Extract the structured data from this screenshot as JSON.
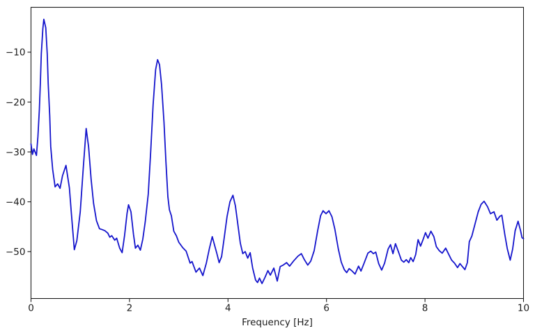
{
  "chart_data": {
    "type": "line",
    "title": "",
    "xlabel": "Frequency [Hz]",
    "ylabel": "",
    "xlim": [
      0,
      10
    ],
    "ylim": [
      -59.4,
      -1.0
    ],
    "grid": false,
    "legend": null,
    "line_color": "#1414cc",
    "axis_color": "#1a1a1a",
    "background_color": "#ffffff",
    "x_ticks": [
      0,
      2,
      4,
      6,
      8,
      10
    ],
    "x_tick_labels": [
      "0",
      "2",
      "4",
      "6",
      "8",
      "10"
    ],
    "y_ticks": [
      -10,
      -20,
      -30,
      -40,
      -50
    ],
    "y_tick_labels": [
      "−10",
      "−20",
      "−30",
      "−40",
      "−50"
    ],
    "series": [
      {
        "name": "spectrum",
        "x": [
          0.0,
          0.03,
          0.06,
          0.11,
          0.14,
          0.17,
          0.19,
          0.21,
          0.24,
          0.26,
          0.3,
          0.33,
          0.35,
          0.38,
          0.4,
          0.44,
          0.49,
          0.54,
          0.59,
          0.64,
          0.71,
          0.78,
          0.82,
          0.88,
          0.93,
          1.0,
          1.06,
          1.12,
          1.17,
          1.22,
          1.27,
          1.33,
          1.39,
          1.45,
          1.5,
          1.56,
          1.6,
          1.64,
          1.7,
          1.74,
          1.8,
          1.85,
          1.9,
          1.95,
          1.98,
          2.03,
          2.08,
          2.12,
          2.17,
          2.22,
          2.27,
          2.32,
          2.38,
          2.43,
          2.48,
          2.53,
          2.57,
          2.61,
          2.65,
          2.7,
          2.74,
          2.78,
          2.81,
          2.85,
          2.9,
          2.95,
          3.0,
          3.08,
          3.15,
          3.23,
          3.27,
          3.35,
          3.42,
          3.49,
          3.56,
          3.62,
          3.68,
          3.73,
          3.77,
          3.82,
          3.87,
          3.92,
          3.98,
          4.04,
          4.1,
          4.15,
          4.2,
          4.25,
          4.3,
          4.35,
          4.4,
          4.45,
          4.5,
          4.56,
          4.6,
          4.64,
          4.69,
          4.75,
          4.81,
          4.86,
          4.93,
          5.0,
          5.06,
          5.12,
          5.19,
          5.25,
          5.33,
          5.42,
          5.49,
          5.55,
          5.62,
          5.68,
          5.75,
          5.82,
          5.88,
          5.93,
          5.99,
          6.05,
          6.11,
          6.17,
          6.24,
          6.3,
          6.36,
          6.41,
          6.46,
          6.52,
          6.58,
          6.65,
          6.7,
          6.76,
          6.84,
          6.9,
          6.95,
          7.0,
          7.06,
          7.12,
          7.18,
          7.25,
          7.3,
          7.35,
          7.4,
          7.46,
          7.52,
          7.57,
          7.62,
          7.67,
          7.71,
          7.76,
          7.81,
          7.86,
          7.91,
          7.96,
          8.01,
          8.06,
          8.12,
          8.18,
          8.23,
          8.29,
          8.35,
          8.42,
          8.48,
          8.54,
          8.6,
          8.66,
          8.71,
          8.76,
          8.81,
          8.86,
          8.9,
          8.95,
          9.02,
          9.08,
          9.14,
          9.2,
          9.27,
          9.33,
          9.4,
          9.46,
          9.52,
          9.56,
          9.62,
          9.67,
          9.73,
          9.78,
          9.83,
          9.89,
          9.94,
          9.97,
          10.0
        ],
        "y": [
          -28.4,
          -30.5,
          -29.4,
          -30.7,
          -27.0,
          -21.5,
          -16.3,
          -10.3,
          -5.3,
          -3.4,
          -5.1,
          -10.3,
          -16.3,
          -22.8,
          -28.9,
          -33.5,
          -37.0,
          -36.4,
          -37.3,
          -34.8,
          -32.7,
          -37.2,
          -42.4,
          -49.6,
          -47.8,
          -42.0,
          -33.5,
          -25.3,
          -29.0,
          -35.5,
          -40.3,
          -43.8,
          -45.4,
          -45.6,
          -45.8,
          -46.3,
          -47.1,
          -46.8,
          -47.7,
          -47.3,
          -49.3,
          -50.2,
          -46.8,
          -42.3,
          -40.6,
          -42.0,
          -46.5,
          -49.3,
          -48.7,
          -49.7,
          -47.5,
          -44.0,
          -38.5,
          -30.0,
          -20.5,
          -13.5,
          -11.5,
          -12.5,
          -16.5,
          -24.0,
          -32.0,
          -39.0,
          -41.6,
          -42.8,
          -45.9,
          -46.8,
          -48.1,
          -49.2,
          -49.9,
          -52.3,
          -52.0,
          -54.1,
          -53.3,
          -54.8,
          -52.3,
          -49.5,
          -47.0,
          -48.8,
          -50.2,
          -52.2,
          -51.0,
          -47.5,
          -43.0,
          -40.0,
          -38.7,
          -40.8,
          -44.5,
          -48.3,
          -50.4,
          -50.0,
          -51.3,
          -50.2,
          -53.3,
          -55.7,
          -56.2,
          -55.3,
          -56.4,
          -55.2,
          -53.8,
          -54.7,
          -53.3,
          -55.9,
          -53.0,
          -52.7,
          -52.2,
          -52.9,
          -51.9,
          -50.9,
          -50.4,
          -51.6,
          -52.7,
          -51.9,
          -49.8,
          -45.8,
          -42.8,
          -41.8,
          -42.4,
          -41.8,
          -43.0,
          -45.5,
          -49.5,
          -52.1,
          -53.6,
          -54.2,
          -53.4,
          -53.9,
          -54.5,
          -52.9,
          -53.9,
          -52.4,
          -50.3,
          -49.9,
          -50.4,
          -50.1,
          -52.4,
          -53.7,
          -52.3,
          -49.5,
          -48.6,
          -50.4,
          -48.4,
          -50.0,
          -51.7,
          -52.1,
          -51.6,
          -52.2,
          -51.2,
          -52.0,
          -50.6,
          -47.6,
          -48.9,
          -47.6,
          -46.2,
          -47.3,
          -45.9,
          -47.0,
          -49.0,
          -49.8,
          -50.3,
          -49.3,
          -50.5,
          -51.7,
          -52.3,
          -53.2,
          -52.4,
          -53.0,
          -53.6,
          -52.2,
          -48.0,
          -46.9,
          -44.3,
          -42.0,
          -40.5,
          -39.9,
          -41.0,
          -42.4,
          -42.0,
          -43.7,
          -42.9,
          -42.7,
          -46.5,
          -49.4,
          -51.7,
          -49.5,
          -45.8,
          -43.9,
          -45.8,
          -47.2,
          -47.4
        ]
      }
    ]
  }
}
